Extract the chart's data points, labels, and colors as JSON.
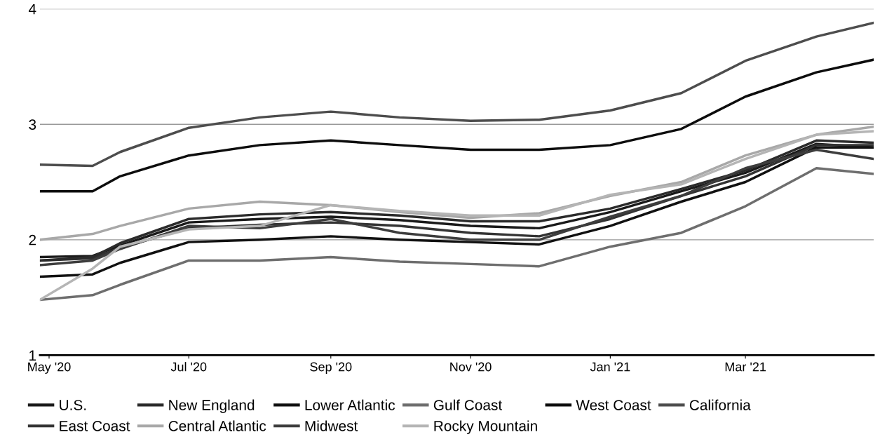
{
  "chart_data": {
    "type": "line",
    "x": [
      "2020-04-27",
      "2020-05-20",
      "2020-06-01",
      "2020-07-01",
      "2020-08-01",
      "2020-09-01",
      "2020-10-01",
      "2020-11-01",
      "2020-12-01",
      "2021-01-01",
      "2021-02-01",
      "2021-03-01",
      "2021-04-01",
      "2021-04-26"
    ],
    "series": [
      {
        "name": "U.S.",
        "color": "#1a1a1a",
        "values": [
          1.85,
          1.86,
          1.95,
          2.15,
          2.18,
          2.2,
          2.17,
          2.12,
          2.1,
          2.24,
          2.42,
          2.58,
          2.83,
          2.8
        ]
      },
      {
        "name": "East Coast",
        "color": "#333333",
        "values": [
          1.82,
          1.84,
          1.93,
          2.1,
          2.13,
          2.15,
          2.12,
          2.06,
          2.03,
          2.18,
          2.38,
          2.55,
          2.82,
          2.82
        ]
      },
      {
        "name": "New England",
        "color": "#2b2b2b",
        "values": [
          1.82,
          1.85,
          1.97,
          2.18,
          2.22,
          2.24,
          2.21,
          2.16,
          2.16,
          2.27,
          2.44,
          2.6,
          2.86,
          2.84
        ]
      },
      {
        "name": "Central Atlantic",
        "color": "#a8a8a8",
        "values": [
          2.0,
          2.05,
          2.12,
          2.27,
          2.33,
          2.3,
          2.24,
          2.19,
          2.23,
          2.38,
          2.5,
          2.73,
          2.91,
          2.98
        ]
      },
      {
        "name": "Lower Atlantic",
        "color": "#111111",
        "values": [
          1.68,
          1.7,
          1.8,
          1.98,
          2.0,
          2.03,
          2.0,
          1.98,
          1.96,
          2.12,
          2.33,
          2.5,
          2.8,
          2.8
        ]
      },
      {
        "name": "Midwest",
        "color": "#3d3d3d",
        "values": [
          1.78,
          1.82,
          1.92,
          2.12,
          2.1,
          2.18,
          2.06,
          2.0,
          2.0,
          2.2,
          2.38,
          2.62,
          2.78,
          2.7
        ]
      },
      {
        "name": "Gulf Coast",
        "color": "#6e6e6e",
        "values": [
          1.48,
          1.52,
          1.61,
          1.82,
          1.82,
          1.85,
          1.81,
          1.79,
          1.77,
          1.94,
          2.06,
          2.29,
          2.62,
          2.57
        ]
      },
      {
        "name": "Rocky Mountain",
        "color": "#b5b5b5",
        "values": [
          1.48,
          1.75,
          1.94,
          2.09,
          2.12,
          2.3,
          2.25,
          2.21,
          2.21,
          2.39,
          2.48,
          2.7,
          2.91,
          2.94
        ]
      },
      {
        "name": "West Coast",
        "color": "#0d0d0d",
        "values": [
          2.42,
          2.42,
          2.55,
          2.73,
          2.82,
          2.86,
          2.82,
          2.78,
          2.78,
          2.82,
          2.96,
          3.24,
          3.45,
          3.56
        ]
      },
      {
        "name": "California",
        "color": "#4d4d4d",
        "values": [
          2.65,
          2.64,
          2.76,
          2.97,
          3.06,
          3.11,
          3.06,
          3.03,
          3.04,
          3.12,
          3.27,
          3.55,
          3.76,
          3.88
        ]
      }
    ],
    "xlim": [
      "2020-04-27",
      "2021-04-26"
    ],
    "xticks": [
      {
        "value": "2020-05-01",
        "label": "May '20"
      },
      {
        "value": "2020-07-01",
        "label": "Jul '20"
      },
      {
        "value": "2020-09-01",
        "label": "Sep '20"
      },
      {
        "value": "2020-11-01",
        "label": "Nov '20"
      },
      {
        "value": "2021-01-01",
        "label": "Jan '21"
      },
      {
        "value": "2021-03-01",
        "label": "Mar '21"
      }
    ],
    "ylim": [
      1,
      4
    ],
    "yticks": [
      1,
      2,
      3,
      4
    ],
    "grid": "y",
    "legend": "bottom",
    "marker": "none",
    "line_style": "solid"
  }
}
